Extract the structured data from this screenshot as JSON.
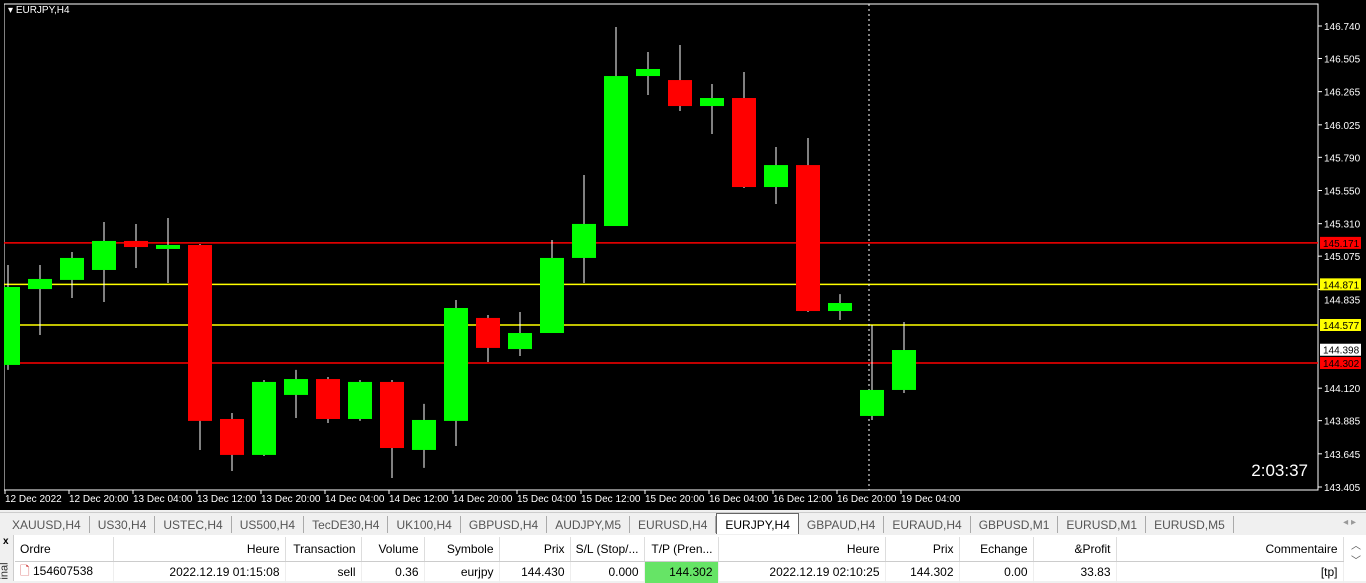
{
  "chart": {
    "title": "EURJPY,H4",
    "timer": "2:03:37"
  },
  "chart_data": {
    "type": "candlestick",
    "symbol": "EURJPY",
    "timeframe": "H4",
    "ylim": [
      143.405,
      146.74
    ],
    "y_ticks": [
      "146.740",
      "146.505",
      "146.265",
      "146.025",
      "145.790",
      "145.550",
      "145.310",
      "145.075",
      "144.835",
      "144.120",
      "143.885",
      "143.645",
      "143.405"
    ],
    "x_ticks": [
      "12 Dec 2022",
      "12 Dec 20:00",
      "13 Dec 04:00",
      "13 Dec 12:00",
      "13 Dec 20:00",
      "14 Dec 04:00",
      "14 Dec 12:00",
      "14 Dec 20:00",
      "15 Dec 04:00",
      "15 Dec 12:00",
      "15 Dec 20:00",
      "16 Dec 04:00",
      "16 Dec 12:00",
      "16 Dec 20:00",
      "19 Dec 04:00"
    ],
    "candles": [
      [
        144.288,
        145.011,
        144.252,
        144.852
      ],
      [
        144.837,
        145.011,
        144.505,
        144.91
      ],
      [
        144.903,
        145.105,
        144.772,
        145.062
      ],
      [
        144.975,
        145.322,
        144.743,
        145.185
      ],
      [
        145.185,
        145.308,
        144.989,
        145.141
      ],
      [
        145.127,
        145.351,
        144.881,
        145.156
      ],
      [
        145.156,
        145.163,
        143.673,
        143.883
      ],
      [
        143.897,
        143.94,
        143.521,
        143.637
      ],
      [
        143.637,
        144.179,
        143.629,
        144.165
      ],
      [
        144.071,
        144.252,
        143.904,
        144.186
      ],
      [
        144.186,
        144.201,
        143.868,
        143.897
      ],
      [
        143.897,
        144.179,
        143.883,
        144.165
      ],
      [
        144.165,
        144.179,
        143.47,
        143.687
      ],
      [
        143.673,
        144.006,
        143.543,
        143.89
      ],
      [
        143.883,
        144.758,
        143.702,
        144.7
      ],
      [
        144.628,
        144.649,
        144.309,
        144.411
      ],
      [
        144.403,
        144.671,
        144.353,
        144.519
      ],
      [
        144.519,
        145.192,
        144.519,
        145.062
      ],
      [
        145.062,
        145.662,
        144.881,
        145.308
      ],
      [
        145.293,
        146.733,
        145.293,
        146.378
      ],
      [
        146.378,
        146.552,
        146.241,
        146.429
      ],
      [
        146.349,
        146.603,
        146.125,
        146.161
      ],
      [
        146.161,
        146.32,
        145.959,
        146.219
      ],
      [
        146.219,
        146.407,
        145.568,
        145.575
      ],
      [
        145.575,
        145.865,
        145.452,
        145.734
      ],
      [
        145.734,
        145.93,
        144.671,
        144.678
      ],
      [
        144.678,
        144.8,
        144.613,
        144.736
      ],
      [
        143.919,
        144.577,
        143.89,
        144.107
      ],
      [
        144.107,
        144.599,
        144.085,
        144.396
      ]
    ],
    "candle_format": [
      "open",
      "high",
      "low",
      "close"
    ],
    "levels": [
      {
        "price": "145.171",
        "color": "#ff0000"
      },
      {
        "price": "144.871",
        "color": "#ffff00"
      },
      {
        "price": "144.577",
        "color": "#ffff00"
      },
      {
        "price": "144.302",
        "color": "#ff0000"
      }
    ],
    "bid": "144.398",
    "colors": {
      "up": "#00ff00",
      "down": "#ff0000",
      "background": "#000000",
      "foreground": "#ffffff"
    }
  },
  "tabs": [
    "XAUUSD,H4",
    "US30,H4",
    "USTEC,H4",
    "US500,H4",
    "TecDE30,H4",
    "UK100,H4",
    "GBPUSD,H4",
    "AUDJPY,M5",
    "EURUSD,H4",
    "EURJPY,H4",
    "GBPAUD,H4",
    "EURAUD,H4",
    "GBPUSD,M1",
    "EURUSD,M1",
    "EURUSD,M5"
  ],
  "active_tab": "EURJPY,H4",
  "terminal": {
    "close": "x",
    "label": "inal",
    "columns": [
      "Ordre",
      "Heure",
      "Transaction",
      "Volume",
      "Symbole",
      "Prix",
      "S/L (Stop/...",
      "T/P (Pren...",
      "Heure",
      "Prix",
      "Echange",
      "&Profit",
      "Commentaire"
    ],
    "rows": [
      [
        "154607538",
        "2022.12.19 01:15:08",
        "sell",
        "0.36",
        "eurjpy",
        "144.430",
        "0.000",
        "144.302",
        "2022.12.19 02:10:25",
        "144.302",
        "0.00",
        "33.83",
        "[tp]"
      ]
    ]
  }
}
